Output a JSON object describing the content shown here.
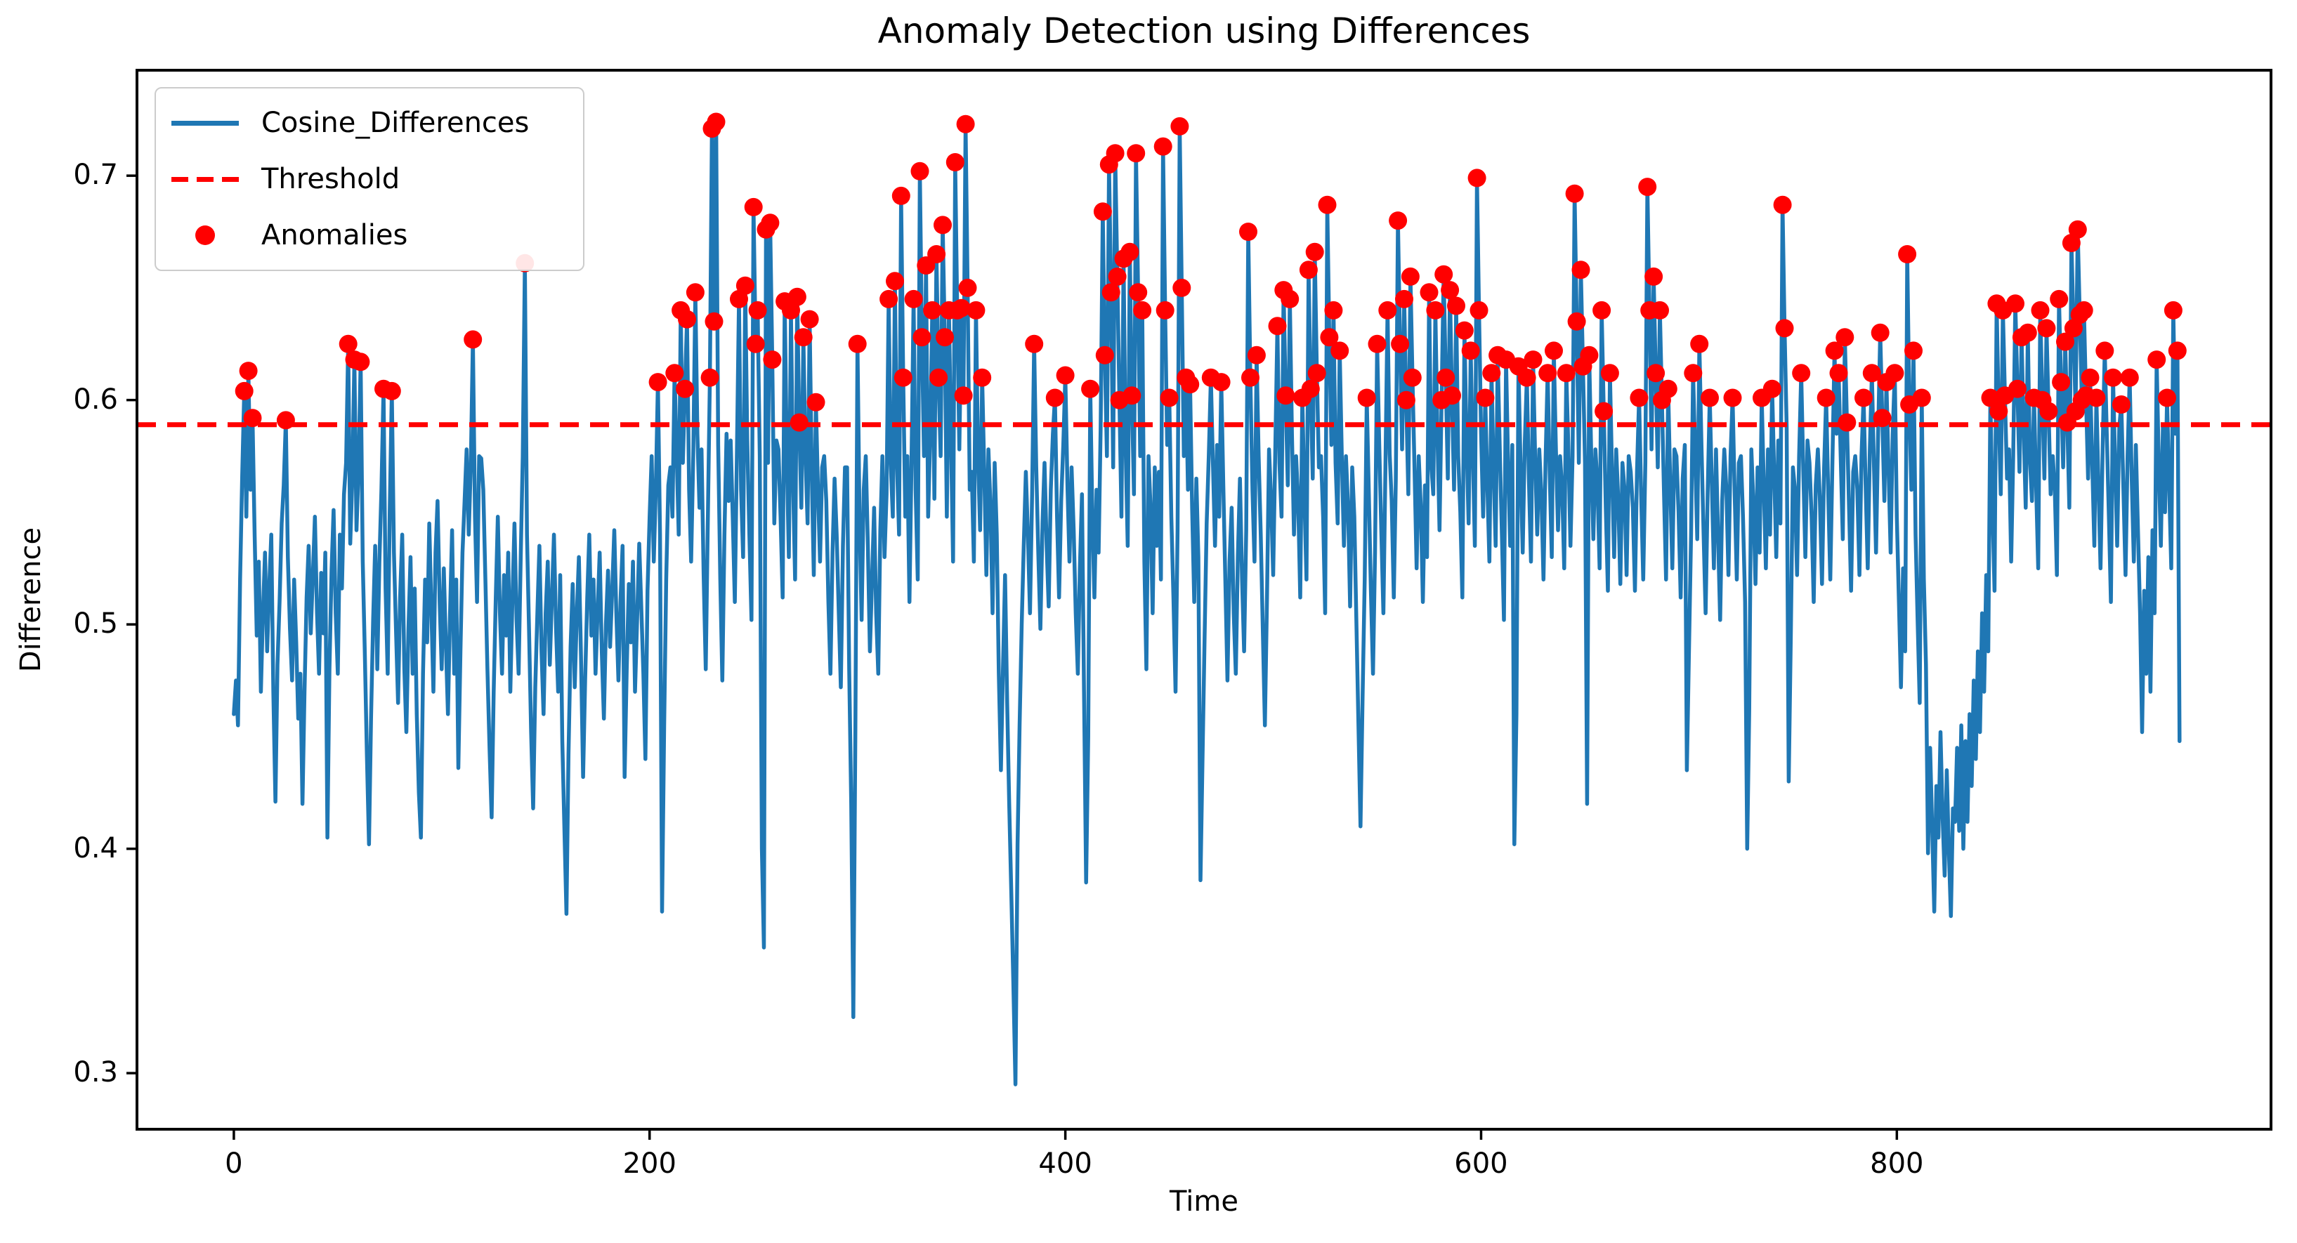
{
  "chart_data": {
    "type": "line",
    "title": "Anomaly Detection using Differences",
    "xlabel": "Time",
    "ylabel": "Difference",
    "x_ticks": [
      0,
      200,
      400,
      600,
      800
    ],
    "y_ticks": [
      0.3,
      0.4,
      0.5,
      0.6,
      0.7
    ],
    "y_tick_labels": [
      "0.3",
      "0.4",
      "0.5",
      "0.6",
      "0.7"
    ],
    "xlim": [
      -46.6,
      980
    ],
    "ylim": [
      0.275,
      0.747
    ],
    "grid": false,
    "threshold": 0.589,
    "anomaly_rule": "points with value above threshold are marked with red dots",
    "colors": {
      "series": "#1f77b4",
      "threshold": "#ff0000",
      "anomaly": "#ff0000",
      "axis": "#000000",
      "legend_border": "#cccccc"
    },
    "legend": {
      "position": "upper-left",
      "items": [
        {
          "label": "Cosine_Differences",
          "type": "line",
          "color": "#1f77b4"
        },
        {
          "label": "Threshold",
          "type": "dashed-line",
          "color": "#ff0000"
        },
        {
          "label": "Anomalies",
          "type": "dot",
          "color": "#ff0000"
        }
      ]
    },
    "series": [
      {
        "name": "Cosine_Differences",
        "x_start": 0,
        "x_step": 1,
        "values": [
          0.46,
          0.475,
          0.455,
          0.52,
          0.565,
          0.604,
          0.548,
          0.613,
          0.56,
          0.592,
          0.54,
          0.495,
          0.528,
          0.47,
          0.505,
          0.532,
          0.488,
          0.516,
          0.54,
          0.47,
          0.421,
          0.482,
          0.51,
          0.545,
          0.562,
          0.591,
          0.53,
          0.498,
          0.475,
          0.52,
          0.492,
          0.458,
          0.478,
          0.42,
          0.47,
          0.512,
          0.535,
          0.496,
          0.522,
          0.548,
          0.505,
          0.478,
          0.523,
          0.496,
          0.532,
          0.405,
          0.48,
          0.524,
          0.551,
          0.505,
          0.478,
          0.54,
          0.516,
          0.558,
          0.572,
          0.625,
          0.536,
          0.565,
          0.618,
          0.542,
          0.57,
          0.617,
          0.528,
          0.488,
          0.442,
          0.402,
          0.458,
          0.502,
          0.535,
          0.48,
          0.528,
          0.56,
          0.605,
          0.516,
          0.478,
          0.55,
          0.604,
          0.532,
          0.498,
          0.465,
          0.512,
          0.54,
          0.48,
          0.452,
          0.498,
          0.53,
          0.478,
          0.516,
          0.46,
          0.425,
          0.405,
          0.478,
          0.52,
          0.492,
          0.545,
          0.508,
          0.47,
          0.532,
          0.555,
          0.51,
          0.48,
          0.525,
          0.492,
          0.46,
          0.505,
          0.542,
          0.478,
          0.52,
          0.436,
          0.488,
          0.532,
          0.555,
          0.578,
          0.54,
          0.572,
          0.627,
          0.548,
          0.51,
          0.575,
          0.574,
          0.56,
          0.52,
          0.48,
          0.445,
          0.414,
          0.47,
          0.512,
          0.548,
          0.505,
          0.478,
          0.522,
          0.495,
          0.532,
          0.47,
          0.51,
          0.545,
          0.502,
          0.478,
          0.53,
          0.575,
          0.661,
          0.54,
          0.498,
          0.452,
          0.418,
          0.472,
          0.505,
          0.535,
          0.488,
          0.46,
          0.505,
          0.528,
          0.482,
          0.512,
          0.54,
          0.498,
          0.47,
          0.522,
          0.448,
          0.41,
          0.371,
          0.442,
          0.49,
          0.518,
          0.472,
          0.505,
          0.53,
          0.486,
          0.432,
          0.475,
          0.512,
          0.54,
          0.495,
          0.52,
          0.478,
          0.506,
          0.532,
          0.488,
          0.458,
          0.5,
          0.524,
          0.49,
          0.515,
          0.542,
          0.505,
          0.475,
          0.51,
          0.535,
          0.432,
          0.48,
          0.518,
          0.492,
          0.528,
          0.47,
          0.502,
          0.536,
          0.508,
          0.478,
          0.44,
          0.515,
          0.548,
          0.575,
          0.528,
          0.56,
          0.608,
          0.54,
          0.372,
          0.455,
          0.52,
          0.562,
          0.57,
          0.548,
          0.612,
          0.578,
          0.54,
          0.64,
          0.572,
          0.605,
          0.636,
          0.56,
          0.528,
          0.575,
          0.648,
          0.585,
          0.552,
          0.578,
          0.522,
          0.48,
          0.545,
          0.61,
          0.721,
          0.635,
          0.724,
          0.58,
          0.52,
          0.475,
          0.54,
          0.585,
          0.555,
          0.582,
          0.548,
          0.51,
          0.575,
          0.645,
          0.56,
          0.53,
          0.651,
          0.582,
          0.54,
          0.502,
          0.686,
          0.625,
          0.64,
          0.575,
          0.4,
          0.356,
          0.676,
          0.572,
          0.679,
          0.618,
          0.545,
          0.582,
          0.578,
          0.548,
          0.512,
          0.644,
          0.575,
          0.53,
          0.64,
          0.565,
          0.52,
          0.646,
          0.59,
          0.552,
          0.628,
          0.575,
          0.545,
          0.636,
          0.568,
          0.522,
          0.599,
          0.56,
          0.528,
          0.57,
          0.575,
          0.555,
          0.51,
          0.478,
          0.532,
          0.565,
          0.54,
          0.505,
          0.472,
          0.535,
          0.57,
          0.57,
          0.48,
          0.42,
          0.325,
          0.452,
          0.625,
          0.548,
          0.502,
          0.56,
          0.575,
          0.535,
          0.488,
          0.52,
          0.552,
          0.505,
          0.478,
          0.542,
          0.575,
          0.53,
          0.558,
          0.645,
          0.572,
          0.548,
          0.653,
          0.572,
          0.54,
          0.691,
          0.61,
          0.548,
          0.575,
          0.51,
          0.572,
          0.645,
          0.56,
          0.52,
          0.702,
          0.628,
          0.575,
          0.66,
          0.548,
          0.585,
          0.64,
          0.556,
          0.665,
          0.61,
          0.575,
          0.678,
          0.628,
          0.548,
          0.64,
          0.582,
          0.528,
          0.706,
          0.64,
          0.578,
          0.641,
          0.602,
          0.723,
          0.65,
          0.56,
          0.568,
          0.528,
          0.64,
          0.575,
          0.542,
          0.61,
          0.568,
          0.522,
          0.578,
          0.552,
          0.505,
          0.572,
          0.54,
          0.478,
          0.435,
          0.48,
          0.522,
          0.465,
          0.42,
          0.38,
          0.34,
          0.295,
          0.402,
          0.455,
          0.5,
          0.535,
          0.568,
          0.54,
          0.505,
          0.558,
          0.625,
          0.57,
          0.532,
          0.498,
          0.545,
          0.572,
          0.535,
          0.508,
          0.56,
          0.585,
          0.601,
          0.548,
          0.512,
          0.555,
          0.58,
          0.611,
          0.562,
          0.528,
          0.57,
          0.542,
          0.505,
          0.478,
          0.525,
          0.558,
          0.47,
          0.385,
          0.45,
          0.605,
          0.548,
          0.512,
          0.56,
          0.532,
          0.588,
          0.684,
          0.62,
          0.575,
          0.705,
          0.648,
          0.57,
          0.71,
          0.655,
          0.6,
          0.548,
          0.663,
          0.58,
          0.535,
          0.666,
          0.602,
          0.558,
          0.71,
          0.648,
          0.575,
          0.64,
          0.528,
          0.48,
          0.575,
          0.552,
          0.505,
          0.57,
          0.535,
          0.568,
          0.52,
          0.713,
          0.64,
          0.58,
          0.601,
          0.548,
          0.512,
          0.47,
          0.542,
          0.722,
          0.65,
          0.575,
          0.61,
          0.56,
          0.607,
          0.552,
          0.51,
          0.565,
          0.53,
          0.386,
          0.44,
          0.495,
          0.545,
          0.575,
          0.61,
          0.572,
          0.535,
          0.58,
          0.548,
          0.608,
          0.562,
          0.518,
          0.475,
          0.528,
          0.552,
          0.505,
          0.478,
          0.53,
          0.565,
          0.52,
          0.488,
          0.542,
          0.675,
          0.61,
          0.56,
          0.528,
          0.62,
          0.575,
          0.54,
          0.498,
          0.455,
          0.512,
          0.578,
          0.555,
          0.522,
          0.578,
          0.633,
          0.572,
          0.548,
          0.649,
          0.602,
          0.562,
          0.645,
          0.585,
          0.54,
          0.575,
          0.555,
          0.512,
          0.601,
          0.558,
          0.52,
          0.658,
          0.605,
          0.565,
          0.666,
          0.612,
          0.57,
          0.575,
          0.548,
          0.505,
          0.687,
          0.628,
          0.58,
          0.64,
          0.572,
          0.545,
          0.622,
          0.575,
          0.535,
          0.575,
          0.552,
          0.508,
          0.57,
          0.548,
          0.502,
          0.455,
          0.41,
          0.468,
          0.52,
          0.601,
          0.558,
          0.515,
          0.478,
          0.532,
          0.625,
          0.58,
          0.542,
          0.505,
          0.57,
          0.64,
          0.576,
          0.555,
          0.512,
          0.565,
          0.68,
          0.625,
          0.578,
          0.645,
          0.6,
          0.558,
          0.655,
          0.61,
          0.568,
          0.525,
          0.575,
          0.552,
          0.51,
          0.562,
          0.53,
          0.648,
          0.572,
          0.558,
          0.64,
          0.585,
          0.542,
          0.6,
          0.656,
          0.61,
          0.565,
          0.649,
          0.602,
          0.56,
          0.642,
          0.575,
          0.55,
          0.512,
          0.631,
          0.582,
          0.545,
          0.622,
          0.578,
          0.535,
          0.699,
          0.64,
          0.585,
          0.548,
          0.601,
          0.562,
          0.528,
          0.612,
          0.57,
          0.535,
          0.62,
          0.578,
          0.54,
          0.502,
          0.618,
          0.572,
          0.535,
          0.58,
          0.402,
          0.46,
          0.615,
          0.57,
          0.532,
          0.58,
          0.61,
          0.565,
          0.528,
          0.618,
          0.575,
          0.54,
          0.578,
          0.558,
          0.52,
          0.572,
          0.612,
          0.568,
          0.53,
          0.622,
          0.578,
          0.542,
          0.575,
          0.56,
          0.525,
          0.612,
          0.578,
          0.535,
          0.575,
          0.692,
          0.635,
          0.572,
          0.658,
          0.615,
          0.572,
          0.42,
          0.62,
          0.575,
          0.538,
          0.578,
          0.562,
          0.525,
          0.64,
          0.595,
          0.552,
          0.515,
          0.612,
          0.568,
          0.53,
          0.578,
          0.555,
          0.518,
          0.572,
          0.56,
          0.522,
          0.575,
          0.568,
          0.552,
          0.515,
          0.568,
          0.601,
          0.558,
          0.52,
          0.572,
          0.695,
          0.64,
          0.578,
          0.655,
          0.612,
          0.57,
          0.64,
          0.6,
          0.558,
          0.52,
          0.605,
          0.562,
          0.525,
          0.578,
          0.575,
          0.55,
          0.512,
          0.565,
          0.58,
          0.435,
          0.488,
          0.54,
          0.612,
          0.575,
          0.538,
          0.625,
          0.58,
          0.542,
          0.505,
          0.558,
          0.601,
          0.562,
          0.525,
          0.578,
          0.54,
          0.502,
          0.555,
          0.578,
          0.56,
          0.522,
          0.575,
          0.601,
          0.558,
          0.52,
          0.572,
          0.575,
          0.548,
          0.51,
          0.4,
          0.462,
          0.578,
          0.555,
          0.518,
          0.57,
          0.532,
          0.601,
          0.562,
          0.525,
          0.578,
          0.54,
          0.605,
          0.568,
          0.53,
          0.582,
          0.545,
          0.687,
          0.632,
          0.588,
          0.43,
          0.495,
          0.57,
          0.56,
          0.522,
          0.575,
          0.612,
          0.568,
          0.53,
          0.582,
          0.572,
          0.548,
          0.51,
          0.562,
          0.578,
          0.555,
          0.518,
          0.57,
          0.601,
          0.558,
          0.52,
          0.572,
          0.622,
          0.585,
          0.612,
          0.575,
          0.538,
          0.628,
          0.59,
          0.552,
          0.515,
          0.568,
          0.575,
          0.56,
          0.522,
          0.575,
          0.601,
          0.562,
          0.525,
          0.578,
          0.612,
          0.57,
          0.532,
          0.585,
          0.63,
          0.592,
          0.555,
          0.608,
          0.57,
          0.532,
          0.585,
          0.612,
          0.548,
          0.51,
          0.472,
          0.525,
          0.488,
          0.665,
          0.598,
          0.56,
          0.622,
          0.54,
          0.502,
          0.465,
          0.601,
          0.52,
          0.482,
          0.398,
          0.445,
          0.41,
          0.372,
          0.428,
          0.405,
          0.452,
          0.415,
          0.388,
          0.435,
          0.4,
          0.37,
          0.418,
          0.412,
          0.445,
          0.408,
          0.455,
          0.4,
          0.448,
          0.412,
          0.46,
          0.428,
          0.475,
          0.44,
          0.488,
          0.452,
          0.505,
          0.47,
          0.522,
          0.488,
          0.601,
          0.552,
          0.515,
          0.643,
          0.595,
          0.558,
          0.64,
          0.602,
          0.565,
          0.578,
          0.528,
          0.575,
          0.643,
          0.605,
          0.568,
          0.628,
          0.588,
          0.552,
          0.63,
          0.574,
          0.555,
          0.601,
          0.562,
          0.525,
          0.64,
          0.6,
          0.565,
          0.632,
          0.595,
          0.558,
          0.575,
          0.56,
          0.522,
          0.645,
          0.608,
          0.57,
          0.626,
          0.59,
          0.552,
          0.67,
          0.632,
          0.595,
          0.676,
          0.638,
          0.6,
          0.64,
          0.602,
          0.565,
          0.61,
          0.572,
          0.535,
          0.601,
          0.562,
          0.525,
          0.578,
          0.622,
          0.585,
          0.548,
          0.51,
          0.61,
          0.572,
          0.535,
          0.588,
          0.598,
          0.56,
          0.522,
          0.575,
          0.61,
          0.565,
          0.528,
          0.58,
          0.542,
          0.505,
          0.452,
          0.515,
          0.478,
          0.53,
          0.47,
          0.542,
          0.505,
          0.618,
          0.572,
          0.535,
          0.588,
          0.55,
          0.601,
          0.562,
          0.525,
          0.64,
          0.585,
          0.622,
          0.448
        ]
      }
    ]
  }
}
